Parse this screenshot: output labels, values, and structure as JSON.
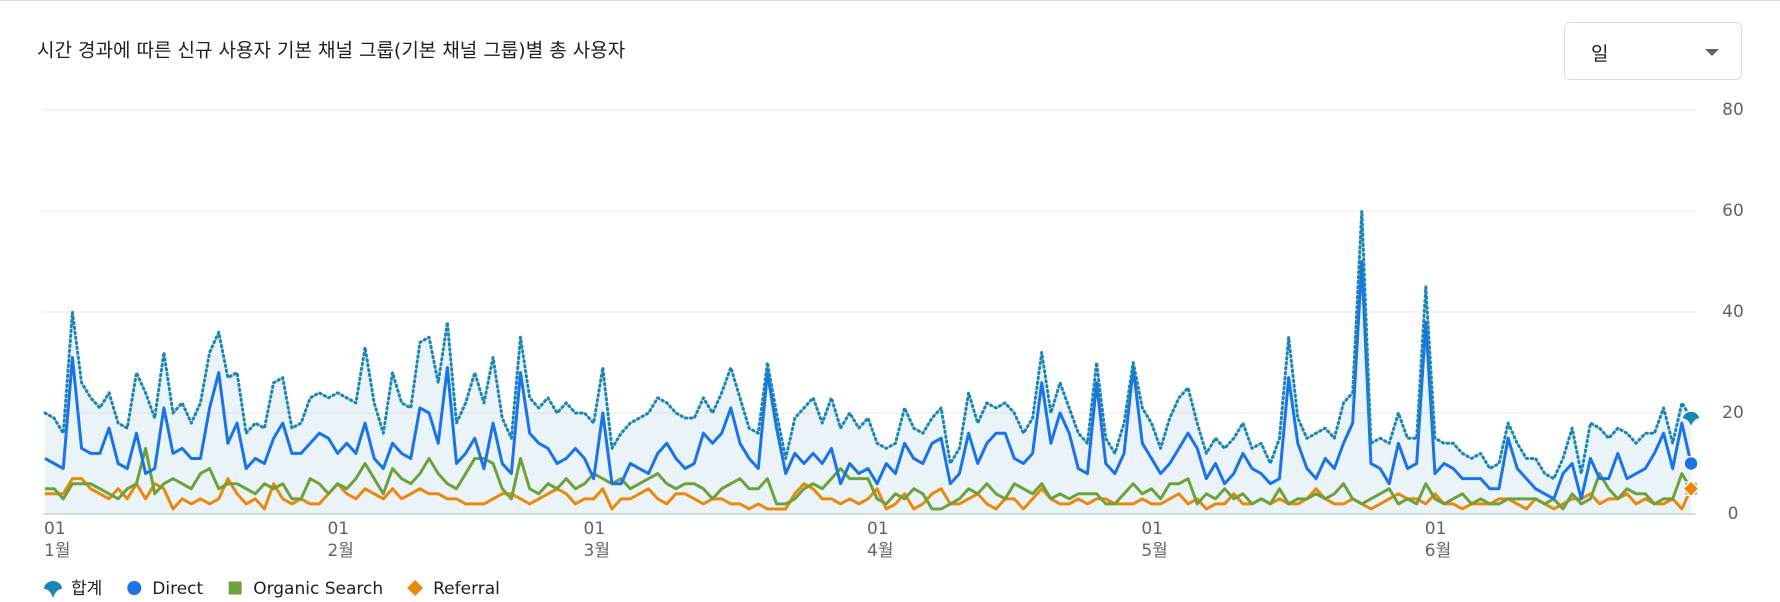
{
  "controls": {
    "period": "일"
  },
  "chart_data": {
    "type": "line",
    "title": "시간 경과에 따른 신규 사용자 기본 채널 그룹(기본 채널 그룹)별 총 사용자",
    "categories": [
      "01 1월",
      null,
      null,
      null,
      null,
      null,
      null,
      null,
      null,
      null,
      null,
      null,
      null,
      null,
      null,
      null,
      null,
      null,
      null,
      null,
      null,
      null,
      null,
      null,
      null,
      null,
      null,
      null,
      null,
      null,
      null,
      "01 2월",
      null,
      null,
      null,
      null,
      null,
      null,
      null,
      null,
      null,
      null,
      null,
      null,
      null,
      null,
      null,
      null,
      null,
      null,
      null,
      null,
      null,
      null,
      null,
      null,
      null,
      null,
      null,
      "01 3월",
      null,
      null,
      null,
      null,
      null,
      null,
      null,
      null,
      null,
      null,
      null,
      null,
      null,
      null,
      null,
      null,
      null,
      null,
      null,
      null,
      null,
      null,
      null,
      null,
      null,
      null,
      null,
      null,
      null,
      null,
      "01 4월",
      null,
      null,
      null,
      null,
      null,
      null,
      null,
      null,
      null,
      null,
      null,
      null,
      null,
      null,
      null,
      null,
      null,
      null,
      null,
      null,
      null,
      null,
      null,
      null,
      null,
      null,
      null,
      null,
      null,
      "01 5월",
      null,
      null,
      null,
      null,
      null,
      null,
      null,
      null,
      null,
      null,
      null,
      null,
      null,
      null,
      null,
      null,
      null,
      null,
      null,
      null,
      null,
      null,
      null,
      null,
      null,
      null,
      null,
      null,
      null,
      null,
      "01 6월",
      null,
      null,
      null,
      null,
      null,
      null,
      null,
      null,
      null,
      null,
      null,
      null,
      null,
      null,
      null,
      null,
      null,
      null,
      null,
      null,
      null,
      null,
      null,
      null,
      null,
      null,
      null,
      null,
      null
    ],
    "ylim": [
      0,
      80
    ],
    "yticks": [
      0,
      20,
      40,
      60,
      80
    ],
    "grid": true,
    "legend": "bottom-left",
    "series": [
      {
        "name": "합계",
        "color": "#1a86b5",
        "dash": "dotted",
        "area": true,
        "marker": "pin",
        "values": [
          20,
          19,
          16,
          40,
          26,
          23,
          21,
          24,
          18,
          17,
          28,
          24,
          19,
          32,
          20,
          22,
          18,
          22,
          32,
          36,
          27,
          28,
          16,
          18,
          17,
          26,
          27,
          17,
          18,
          23,
          24,
          23,
          24,
          23,
          22,
          33,
          22,
          16,
          28,
          22,
          21,
          34,
          35,
          26,
          38,
          18,
          22,
          28,
          22,
          31,
          19,
          15,
          35,
          23,
          21,
          23,
          20,
          22,
          20,
          20,
          18,
          29,
          13,
          16,
          18,
          19,
          20,
          23,
          22,
          20,
          19,
          19,
          23,
          20,
          24,
          29,
          23,
          17,
          16,
          30,
          20,
          11,
          19,
          21,
          23,
          18,
          23,
          17,
          20,
          17,
          19,
          14,
          13,
          14,
          21,
          17,
          16,
          19,
          21,
          10,
          13,
          24,
          18,
          22,
          21,
          22,
          20,
          16,
          19,
          32,
          20,
          26,
          21,
          16,
          14,
          30,
          15,
          12,
          18,
          30,
          21,
          18,
          13,
          19,
          23,
          25,
          18,
          12,
          15,
          13,
          15,
          18,
          13,
          14,
          10,
          15,
          35,
          19,
          15,
          16,
          17,
          15,
          22,
          24,
          60,
          14,
          15,
          14,
          20,
          15,
          15,
          45,
          15,
          14,
          14,
          12,
          11,
          12,
          9,
          10,
          18,
          14,
          11,
          11,
          8,
          7,
          11,
          17,
          8,
          18,
          17,
          15,
          17,
          16,
          14,
          16,
          16,
          21,
          14,
          22,
          19
        ]
      },
      {
        "name": "Direct",
        "color": "#1a73e8",
        "marker": "circle",
        "values": [
          11,
          10,
          9,
          31,
          13,
          12,
          12,
          17,
          10,
          9,
          16,
          8,
          9,
          21,
          12,
          13,
          11,
          11,
          21,
          28,
          14,
          18,
          9,
          11,
          10,
          15,
          18,
          12,
          12,
          14,
          16,
          15,
          12,
          14,
          12,
          18,
          11,
          9,
          14,
          12,
          11,
          21,
          20,
          14,
          29,
          10,
          12,
          15,
          9,
          18,
          10,
          8,
          28,
          16,
          14,
          13,
          10,
          11,
          13,
          11,
          7,
          20,
          6,
          6,
          10,
          9,
          8,
          12,
          14,
          11,
          9,
          10,
          16,
          14,
          16,
          21,
          14,
          11,
          9,
          28,
          17,
          8,
          12,
          10,
          12,
          10,
          13,
          6,
          10,
          8,
          9,
          6,
          10,
          8,
          14,
          11,
          10,
          14,
          15,
          6,
          8,
          16,
          10,
          14,
          16,
          16,
          11,
          10,
          12,
          26,
          14,
          20,
          16,
          9,
          8,
          26,
          10,
          8,
          12,
          29,
          14,
          11,
          8,
          10,
          13,
          16,
          13,
          7,
          10,
          6,
          8,
          12,
          9,
          8,
          6,
          7,
          27,
          14,
          9,
          7,
          11,
          9,
          14,
          18,
          50,
          10,
          9,
          6,
          14,
          9,
          10,
          38,
          8,
          10,
          9,
          7,
          7,
          7,
          5,
          5,
          15,
          9,
          7,
          5,
          4,
          3,
          8,
          10,
          3,
          11,
          7,
          7,
          12,
          7,
          8,
          9,
          12,
          16,
          9,
          18,
          10
        ]
      },
      {
        "name": "Organic Search",
        "color": "#6ea13b",
        "marker": "square",
        "values": [
          5,
          5,
          3,
          6,
          6,
          6,
          5,
          4,
          3,
          5,
          6,
          13,
          4,
          6,
          7,
          6,
          5,
          8,
          9,
          5,
          6,
          6,
          5,
          4,
          6,
          5,
          6,
          3,
          3,
          7,
          6,
          4,
          6,
          5,
          7,
          10,
          7,
          4,
          9,
          7,
          6,
          8,
          11,
          8,
          6,
          5,
          8,
          11,
          11,
          10,
          5,
          3,
          11,
          5,
          4,
          6,
          5,
          7,
          5,
          6,
          8,
          7,
          6,
          7,
          5,
          6,
          7,
          8,
          6,
          5,
          6,
          6,
          5,
          3,
          5,
          6,
          7,
          5,
          5,
          7,
          2,
          2,
          3,
          5,
          6,
          5,
          7,
          9,
          7,
          7,
          7,
          3,
          2,
          4,
          3,
          5,
          4,
          1,
          1,
          2,
          3,
          5,
          4,
          6,
          4,
          3,
          6,
          5,
          4,
          6,
          3,
          4,
          3,
          4,
          4,
          4,
          2,
          2,
          4,
          6,
          4,
          5,
          3,
          6,
          6,
          7,
          2,
          4,
          3,
          5,
          3,
          4,
          2,
          3,
          2,
          5,
          2,
          3,
          3,
          4,
          3,
          4,
          6,
          3,
          2,
          3,
          4,
          5,
          2,
          3,
          2,
          6,
          3,
          2,
          3,
          4,
          2,
          3,
          2,
          2,
          3,
          3,
          3,
          3,
          2,
          3,
          1,
          4,
          2,
          3,
          8,
          5,
          3,
          5,
          4,
          4,
          2,
          3,
          3,
          8,
          5
        ]
      },
      {
        "name": "Referral",
        "color": "#e8890c",
        "marker": "diamond",
        "values": [
          4,
          4,
          4,
          7,
          7,
          5,
          4,
          3,
          5,
          3,
          6,
          3,
          6,
          5,
          1,
          3,
          2,
          3,
          2,
          3,
          7,
          4,
          2,
          3,
          1,
          6,
          3,
          2,
          3,
          2,
          2,
          4,
          6,
          4,
          3,
          5,
          4,
          3,
          5,
          3,
          4,
          5,
          4,
          4,
          3,
          3,
          2,
          2,
          2,
          3,
          4,
          4,
          3,
          2,
          3,
          4,
          5,
          4,
          2,
          3,
          3,
          5,
          1,
          3,
          3,
          4,
          5,
          3,
          2,
          4,
          4,
          3,
          2,
          3,
          3,
          2,
          2,
          1,
          2,
          1,
          1,
          1,
          4,
          6,
          5,
          3,
          3,
          2,
          3,
          2,
          3,
          5,
          1,
          2,
          4,
          1,
          2,
          4,
          5,
          2,
          2,
          3,
          4,
          2,
          1,
          3,
          3,
          1,
          3,
          5,
          3,
          2,
          2,
          3,
          2,
          3,
          3,
          2,
          2,
          2,
          3,
          2,
          2,
          3,
          4,
          2,
          3,
          1,
          2,
          2,
          4,
          2,
          2,
          3,
          2,
          3,
          2,
          2,
          3,
          5,
          3,
          2,
          2,
          3,
          2,
          1,
          2,
          3,
          4,
          3,
          3,
          2,
          4,
          2,
          2,
          1,
          2,
          2,
          2,
          3,
          3,
          2,
          1,
          3,
          2,
          1,
          2,
          3,
          3,
          4,
          2,
          3,
          3,
          4,
          2,
          3,
          2,
          2,
          3,
          1,
          5
        ]
      }
    ]
  }
}
